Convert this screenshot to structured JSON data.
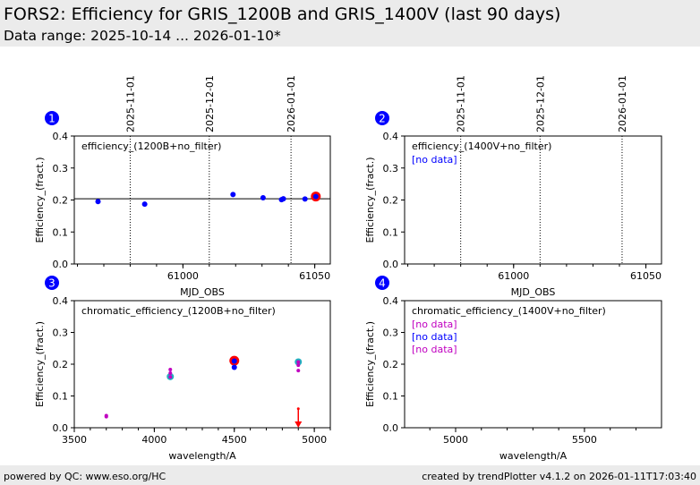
{
  "header": {
    "title": "FORS2: Efficiency for GRIS_1200B and GRIS_1400V (last 90 days)",
    "subtitle": "Data range: 2025-10-14 ... 2026-01-10*"
  },
  "footer": {
    "left": "powered by QC: www.eso.org/HC",
    "right": "created by trendPlotter v4.1.2 on 2026-01-11T17:03:40"
  },
  "colors": {
    "badge": "#0000ff",
    "point": "#0000ff",
    "latest": "#ff0000",
    "cyan": "#20b2c0",
    "magenta": "#c000c0",
    "nodata_blue": "#0000ff",
    "nodata_magenta": "#c000c0"
  },
  "chart_data": [
    {
      "panel": "1",
      "type": "scatter",
      "label": "efficiency_(1200B+no_filter)",
      "xlabel": "MJD_OBS",
      "ylabel": "Efficiency_(fract.)",
      "xlim": [
        60958.8,
        61055.9
      ],
      "ylim": [
        0,
        0.4
      ],
      "xticks": [
        61000,
        61050
      ],
      "xminor": 10,
      "yticks": [
        "0.0",
        "0.1",
        "0.2",
        "0.3",
        "0.4"
      ],
      "date_lines": [
        {
          "label": "2025-11-01",
          "x": 60980
        },
        {
          "label": "2025-12-01",
          "x": 61010
        },
        {
          "label": "2026-01-01",
          "x": 61041
        }
      ],
      "hline": 0.204,
      "notes": [],
      "series": [
        {
          "name": "efficiency",
          "color": "#0000ff",
          "size": 3,
          "x": [
            60967.8,
            60985.5,
            61019,
            61030.4,
            61037.4,
            61038.1,
            61046.3
          ],
          "y": [
            0.195,
            0.187,
            0.217,
            0.207,
            0.201,
            0.204,
            0.203
          ]
        },
        {
          "name": "latest",
          "color": "#ff0000",
          "size": 5.5,
          "x": [
            61050.4
          ],
          "y": [
            0.211
          ]
        },
        {
          "name": "latest-core",
          "color": "#0000ff",
          "size": 3,
          "x": [
            61050.4
          ],
          "y": [
            0.211
          ]
        }
      ]
    },
    {
      "panel": "2",
      "type": "scatter",
      "label": "efficiency_(1400V+no_filter)",
      "xlabel": "MJD_OBS",
      "ylabel": "Efficiency_(fract.)",
      "xlim": [
        60958.8,
        61055.9
      ],
      "ylim": [
        0,
        0.4
      ],
      "xticks": [
        61000,
        61050
      ],
      "xminor": 10,
      "yticks": [
        "0.0",
        "0.1",
        "0.2",
        "0.3",
        "0.4"
      ],
      "date_lines": [
        {
          "label": "2025-11-01",
          "x": 60980
        },
        {
          "label": "2025-12-01",
          "x": 61010
        },
        {
          "label": "2026-01-01",
          "x": 61041
        }
      ],
      "notes": [
        {
          "text": "[no data]",
          "color": "#0000ff"
        }
      ],
      "series": []
    },
    {
      "panel": "3",
      "type": "scatter",
      "label": "chromatic_efficiency_(1200B+no_filter)",
      "xlabel": "wavelength/A",
      "ylabel": "Efficiency_(fract.)",
      "xlim": [
        3500,
        5100
      ],
      "ylim": [
        0,
        0.4
      ],
      "xticks": [
        3500,
        4000,
        4500,
        5000
      ],
      "xminor": 100,
      "yticks": [
        "0.0",
        "0.1",
        "0.2",
        "0.3",
        "0.4"
      ],
      "date_lines": [],
      "notes": [],
      "series": [
        {
          "name": "cyan",
          "color": "#20b2c0",
          "size": 4,
          "x": [
            4100,
            4900
          ],
          "y": [
            0.161,
            0.207
          ]
        },
        {
          "name": "magenta",
          "color": "#c000c0",
          "size": 2,
          "x": [
            3700,
            3700,
            4100,
            4100,
            4100,
            4900,
            4900,
            4900
          ],
          "y": [
            0.035,
            0.038,
            0.16,
            0.172,
            0.183,
            0.207,
            0.197,
            0.18
          ]
        },
        {
          "name": "latest",
          "color": "#ff0000",
          "size": 5.5,
          "x": [
            4500
          ],
          "y": [
            0.211
          ]
        },
        {
          "name": "blue",
          "color": "#0000ff",
          "size": 3,
          "x": [
            4500,
            4500
          ],
          "y": [
            0.21,
            0.19
          ]
        }
      ],
      "upper_limit": {
        "x": 4900,
        "y": 0.06,
        "color": "#ff0000"
      }
    },
    {
      "panel": "4",
      "type": "scatter",
      "label": "chromatic_efficiency_(1400V+no_filter)",
      "xlabel": "wavelength/A",
      "ylabel": "Efficiency_(fract.)",
      "xlim": [
        4802,
        5799
      ],
      "ylim": [
        0,
        0.4
      ],
      "xticks": [
        5000,
        5500
      ],
      "xminor": 100,
      "yticks": [
        "0.0",
        "0.1",
        "0.2",
        "0.3",
        "0.4"
      ],
      "date_lines": [],
      "series": [],
      "notes": [
        {
          "text": "[no data]",
          "color": "#c000c0"
        },
        {
          "text": "[no data]",
          "color": "#0000ff"
        },
        {
          "text": "[no data]",
          "color": "#c000c0"
        }
      ]
    }
  ]
}
